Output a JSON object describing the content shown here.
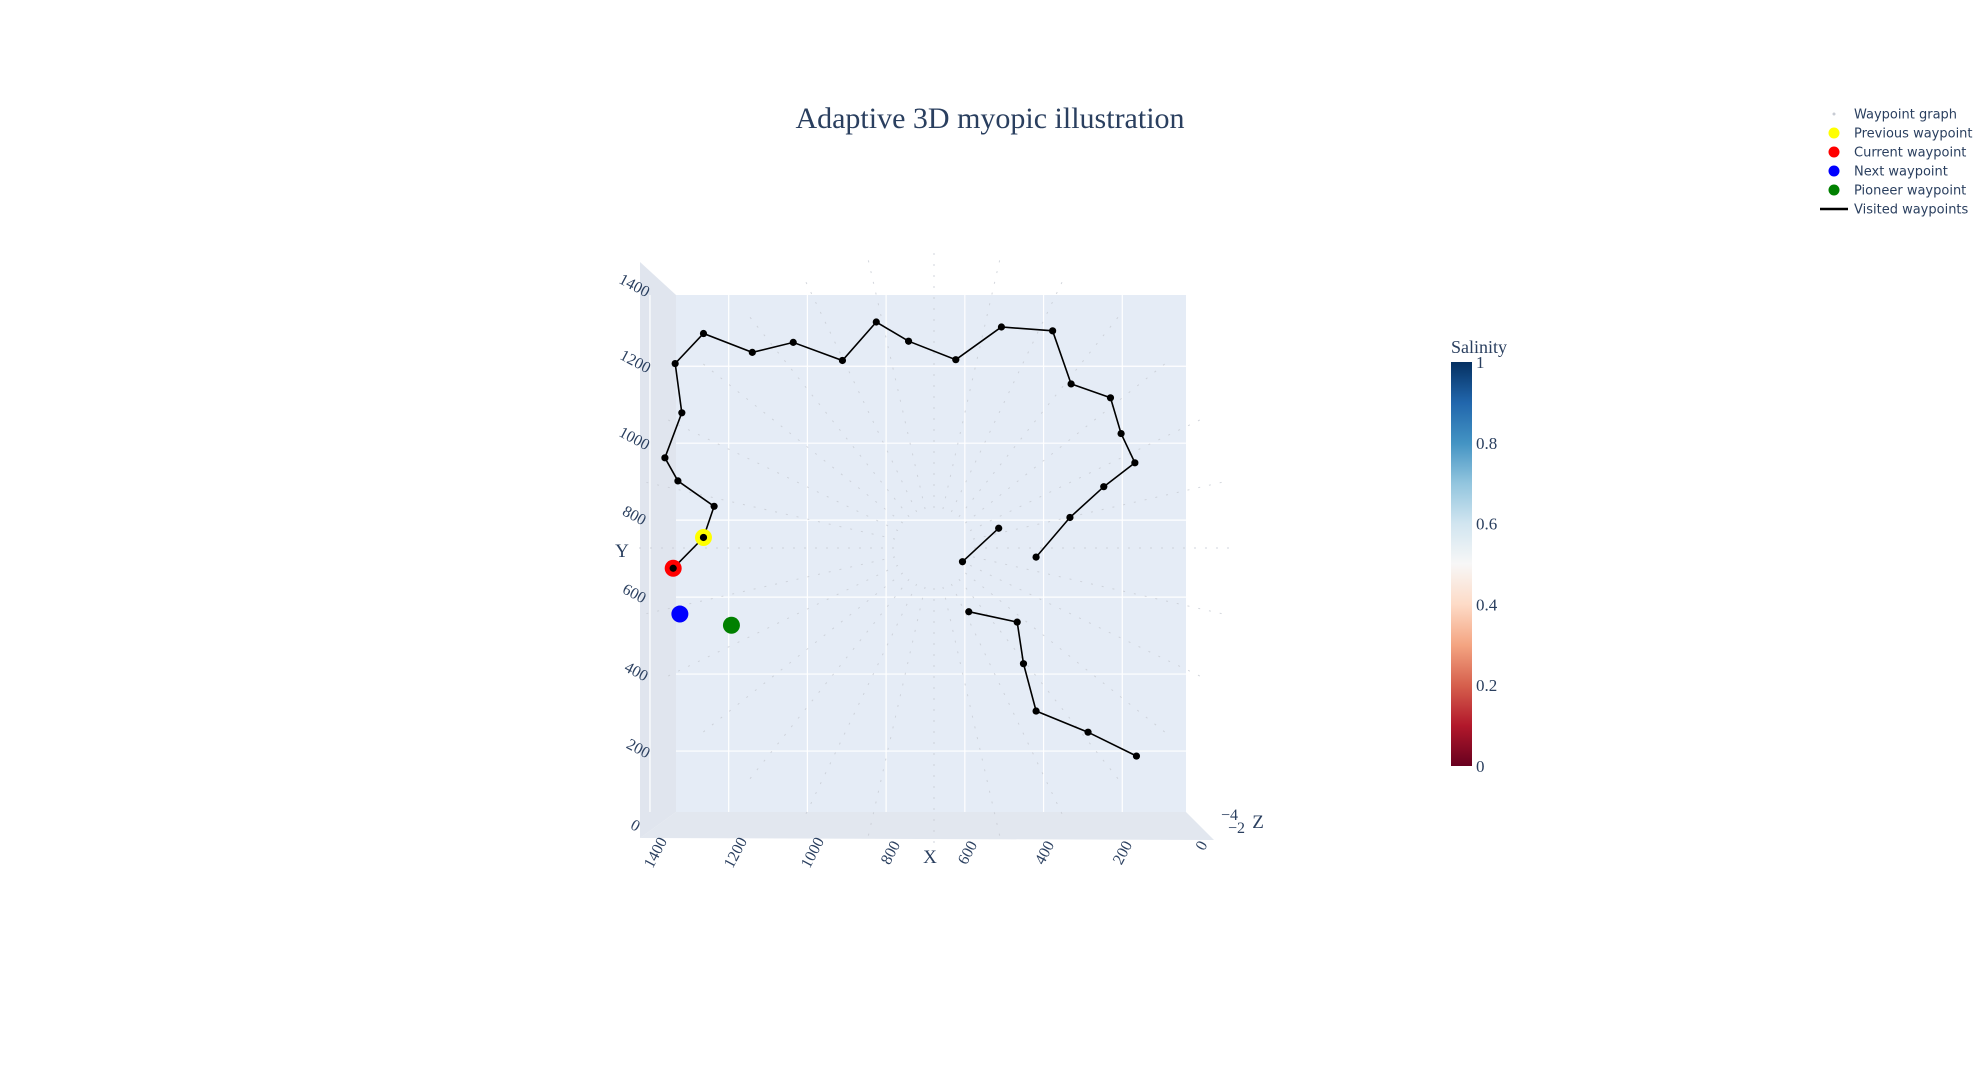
{
  "chart_data": {
    "type": "scatter",
    "title": "Adaptive 3D myopic illustration",
    "xlabel": "X",
    "ylabel": "Y",
    "zlabel": "Z",
    "x_ticks": [
      "1400",
      "1200",
      "1000",
      "800",
      "600",
      "400",
      "200",
      "0"
    ],
    "y_ticks": [
      "0",
      "200",
      "400",
      "600",
      "800",
      "1000",
      "1200",
      "1400"
    ],
    "z_ticks": [
      "−4",
      "−2"
    ],
    "x_range": [
      1450,
      -50
    ],
    "y_range": [
      -30,
      1430
    ],
    "legend_position": "top-right",
    "legend": [
      {
        "label": "Waypoint graph",
        "kind": "tiny-dot",
        "color": "#c8ccd4"
      },
      {
        "label": "Previous waypoint",
        "kind": "dot",
        "color": "#ffff00"
      },
      {
        "label": "Current waypoint",
        "kind": "dot",
        "color": "#ff0000"
      },
      {
        "label": "Next waypoint",
        "kind": "dot",
        "color": "#0000ff"
      },
      {
        "label": "Pioneer waypoint",
        "kind": "dot",
        "color": "#008000"
      },
      {
        "label": "Visited waypoints",
        "kind": "line",
        "color": "#000000"
      }
    ],
    "colorbar": {
      "title": "Salinity",
      "colorscale": "RdBu",
      "ticks": [
        "0",
        "0.2",
        "0.4",
        "0.6",
        "0.8",
        "1"
      ],
      "range": [
        0,
        1
      ]
    },
    "series": [
      {
        "name": "Visited waypoints",
        "segments": [
          {
            "x": [
              1341,
              1264,
              1237,
              1329,
              1362,
              1319,
              1336,
              1264,
              1140,
              1036,
              911,
              825,
              743,
              623,
              507,
              377,
              330,
              230,
              203,
              168,
              247,
              333,
              419
            ],
            "y": [
              675,
              755,
              836,
              902,
              962,
              1079,
              1207,
              1285,
              1236,
              1262,
              1215,
              1315,
              1265,
              1217,
              1302,
              1292,
              1154,
              1118,
              1025,
              949,
              887,
              807,
              704
            ]
          },
          {
            "x": [
              606,
              514
            ],
            "y": [
              692,
              779
            ]
          },
          {
            "x": [
              590,
              467,
              451,
              419,
              287,
              164
            ],
            "y": [
              562,
              535,
              427,
              304,
              249,
              187
            ]
          }
        ]
      },
      {
        "name": "Previous waypoint",
        "x": [
          1264
        ],
        "y": [
          755
        ],
        "color": "#ffff00"
      },
      {
        "name": "Current waypoint",
        "x": [
          1341
        ],
        "y": [
          675
        ],
        "color": "#ff0000"
      },
      {
        "name": "Next waypoint",
        "x": [
          1324
        ],
        "y": [
          556
        ],
        "color": "#0000ff"
      },
      {
        "name": "Pioneer waypoint",
        "x": [
          1193
        ],
        "y": [
          527
        ],
        "color": "#008000"
      }
    ]
  }
}
